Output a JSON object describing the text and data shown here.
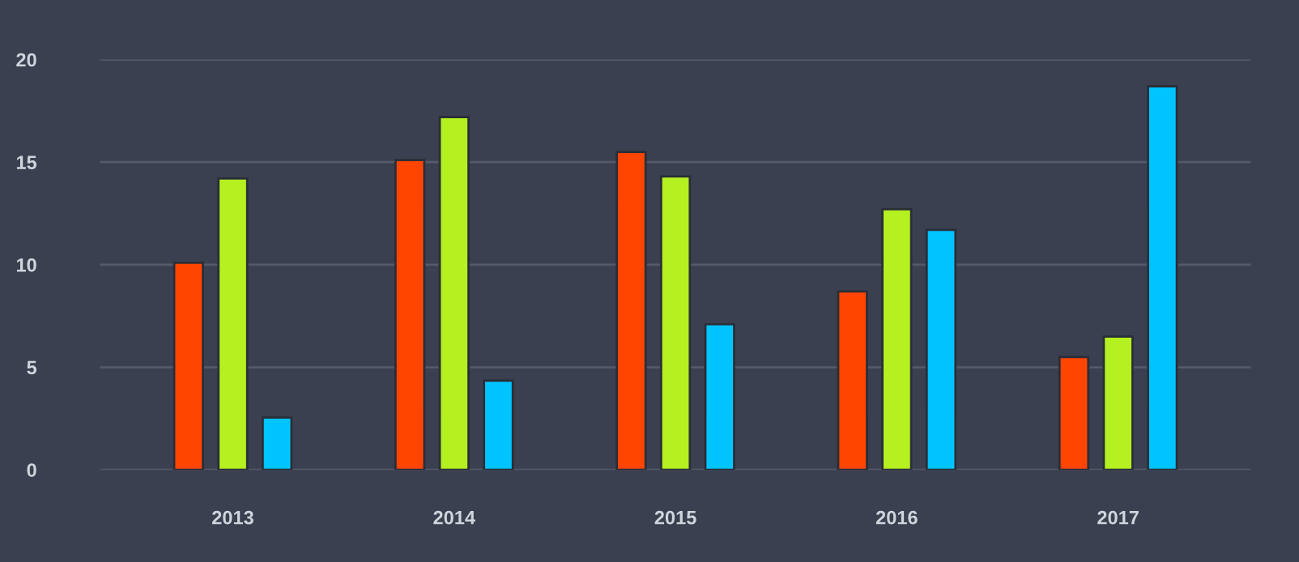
{
  "chart_data": {
    "type": "bar",
    "categories": [
      "2013",
      "2014",
      "2015",
      "2016",
      "2017"
    ],
    "series": [
      {
        "color": "#ff4500",
        "values": [
          10.1,
          15.1,
          15.5,
          8.7,
          5.5
        ]
      },
      {
        "color": "#b5f020",
        "values": [
          14.2,
          17.2,
          14.3,
          12.7,
          6.5
        ]
      },
      {
        "color": "#00c4ff",
        "values": [
          2.55,
          4.35,
          7.1,
          11.7,
          18.7
        ]
      }
    ],
    "ylim": [
      0,
      20
    ],
    "yticks": [
      0,
      5,
      10,
      15,
      20
    ],
    "grid": "y",
    "legend": false
  }
}
